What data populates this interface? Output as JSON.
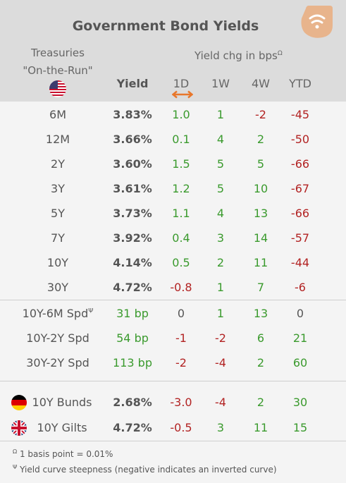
{
  "title": "Government Bond Yields",
  "header": {
    "left_line1": "Treasuries",
    "left_line2": "\"On-the-Run\"",
    "group_label": "Yield chg in bps",
    "group_label_sup": "Ω",
    "yield_label": "Yield",
    "cols": [
      "1D",
      "1W",
      "4W",
      "YTD"
    ]
  },
  "rows": [
    {
      "label": "6M",
      "yield": "3.83%",
      "d1": "1.0",
      "w1": "1",
      "w4": "-2",
      "ytd": "-45"
    },
    {
      "label": "12M",
      "yield": "3.66%",
      "d1": "0.1",
      "w1": "4",
      "w4": "2",
      "ytd": "-50"
    },
    {
      "label": "2Y",
      "yield": "3.60%",
      "d1": "1.5",
      "w1": "5",
      "w4": "5",
      "ytd": "-66"
    },
    {
      "label": "3Y",
      "yield": "3.61%",
      "d1": "1.2",
      "w1": "5",
      "w4": "10",
      "ytd": "-67"
    },
    {
      "label": "5Y",
      "yield": "3.73%",
      "d1": "1.1",
      "w1": "4",
      "w4": "13",
      "ytd": "-66"
    },
    {
      "label": "7Y",
      "yield": "3.92%",
      "d1": "0.4",
      "w1": "3",
      "w4": "14",
      "ytd": "-57"
    },
    {
      "label": "10Y",
      "yield": "4.14%",
      "d1": "0.5",
      "w1": "2",
      "w4": "11",
      "ytd": "-44"
    },
    {
      "label": "30Y",
      "yield": "4.72%",
      "d1": "-0.8",
      "w1": "1",
      "w4": "7",
      "ytd": "-6"
    }
  ],
  "spreads": [
    {
      "label": "10Y-6M Spd",
      "sup": "Ψ",
      "yield": "31 bp",
      "d1": "0",
      "w1": "1",
      "w4": "13",
      "ytd": "0"
    },
    {
      "label": "10Y-2Y Spd",
      "sup": "",
      "yield": "54 bp",
      "d1": "-1",
      "w1": "-2",
      "w4": "6",
      "ytd": "21"
    },
    {
      "label": "30Y-2Y Spd",
      "sup": "",
      "yield": "113 bp",
      "d1": "-2",
      "w1": "-4",
      "w4": "2",
      "ytd": "60"
    }
  ],
  "foreign": [
    {
      "label": "10Y Bunds",
      "flag": "germany-flag-icon",
      "yield": "2.68%",
      "d1": "-3.0",
      "w1": "-4",
      "w4": "2",
      "ytd": "30"
    },
    {
      "label": "10Y Gilts",
      "flag": "uk-flag-icon",
      "yield": "4.72%",
      "d1": "-0.5",
      "w1": "3",
      "w4": "11",
      "ytd": "15"
    }
  ],
  "footnotes": [
    {
      "sym": "Ω",
      "text": "1 basis point = 0.01%"
    },
    {
      "sym": "Ψ",
      "text": "Yield curve steepness (negative indicates an inverted curve)"
    }
  ],
  "colors": {
    "positive": "#3a9a2d",
    "negative": "#b22222",
    "header_bg": "#dcdcdc",
    "logo": "#e8b48c"
  }
}
